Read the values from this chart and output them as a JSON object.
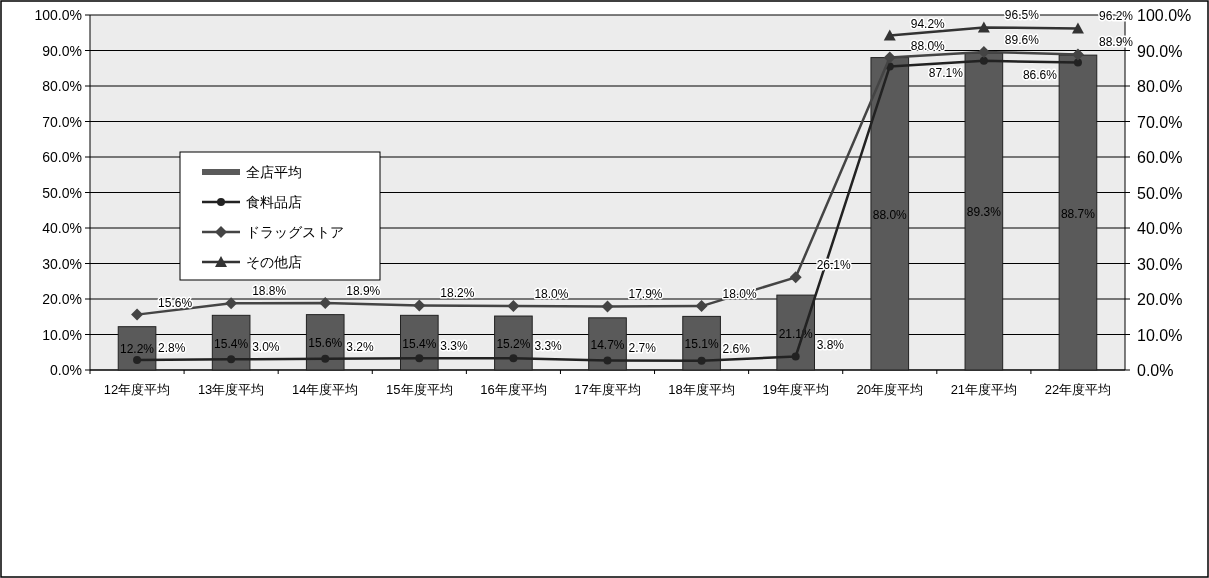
{
  "chart_data": {
    "type": "bar",
    "categories": [
      "12年度平均",
      "13年度平均",
      "14年度平均",
      "15年度平均",
      "16年度平均",
      "17年度平均",
      "18年度平均",
      "19年度平均",
      "20年度平均",
      "21年度平均",
      "22年度平均"
    ],
    "series": [
      {
        "name": "全店平均",
        "type": "bar",
        "color": "#5a5a5a",
        "values": [
          12.2,
          15.4,
          15.6,
          15.4,
          15.2,
          14.7,
          15.1,
          21.1,
          88.0,
          89.3,
          88.7
        ],
        "value_labels": [
          "12.2%",
          "15.4%",
          "15.6%",
          "15.4%",
          "15.2%",
          "14.7%",
          "15.1%",
          "21.1%",
          "88.0%",
          "89.3%",
          "88.7%"
        ]
      },
      {
        "name": "食料品店",
        "type": "line",
        "marker": "circle",
        "color": "#222222",
        "values": [
          2.8,
          3.0,
          3.2,
          3.3,
          3.3,
          2.7,
          2.6,
          3.8,
          85.5,
          87.1,
          86.6
        ],
        "value_labels": [
          "2.8%",
          "3.0%",
          "3.2%",
          "3.3%",
          "3.3%",
          "2.7%",
          "2.6%",
          "3.8%",
          null,
          "87.1%",
          "86.6%"
        ]
      },
      {
        "name": "ドラッグストア",
        "type": "line",
        "marker": "diamond",
        "color": "#444444",
        "values": [
          15.6,
          18.8,
          18.9,
          18.2,
          18.0,
          17.9,
          18.0,
          26.1,
          88.0,
          89.6,
          88.9
        ],
        "value_labels": [
          "15.6%",
          "18.8%",
          "18.9%",
          "18.2%",
          "18.0%",
          "17.9%",
          "18.0%",
          "26.1%",
          "88.0%",
          "89.6%",
          "88.9%"
        ]
      },
      {
        "name": "その他店",
        "type": "line",
        "marker": "triangle",
        "color": "#333333",
        "values": [
          null,
          null,
          null,
          null,
          null,
          null,
          null,
          null,
          94.2,
          96.5,
          96.2
        ],
        "value_labels": [
          null,
          null,
          null,
          null,
          null,
          null,
          null,
          null,
          "94.2%",
          "96.5%",
          "96.2%"
        ]
      }
    ],
    "ylim": [
      0,
      100
    ],
    "yticks": [
      {
        "value": 0,
        "label": "0.0%"
      },
      {
        "value": 10,
        "label": "10.0%"
      },
      {
        "value": 20,
        "label": "20.0%"
      },
      {
        "value": 30,
        "label": "30.0%"
      },
      {
        "value": 40,
        "label": "40.0%"
      },
      {
        "value": 50,
        "label": "50.0%"
      },
      {
        "value": 60,
        "label": "60.0%"
      },
      {
        "value": 70,
        "label": "70.0%"
      },
      {
        "value": 80,
        "label": "80.0%"
      },
      {
        "value": 90,
        "label": "90.0%"
      },
      {
        "value": 100,
        "label": "100.0%"
      }
    ],
    "y2lim": [
      0,
      100
    ],
    "y2ticks": [
      {
        "value": 0,
        "label": "0.0%"
      },
      {
        "value": 10,
        "label": "10.0%"
      },
      {
        "value": 20,
        "label": "20.0%"
      },
      {
        "value": 30,
        "label": "30.0%"
      },
      {
        "value": 40,
        "label": "40.0%"
      },
      {
        "value": 50,
        "label": "50.0%"
      },
      {
        "value": 60,
        "label": "60.0%"
      },
      {
        "value": 70,
        "label": "70.0%"
      },
      {
        "value": 80,
        "label": "80.0%"
      },
      {
        "value": 90,
        "label": "90.0%"
      },
      {
        "value": 100,
        "label": "100.0%"
      }
    ],
    "grid": "y",
    "legend": "left"
  }
}
